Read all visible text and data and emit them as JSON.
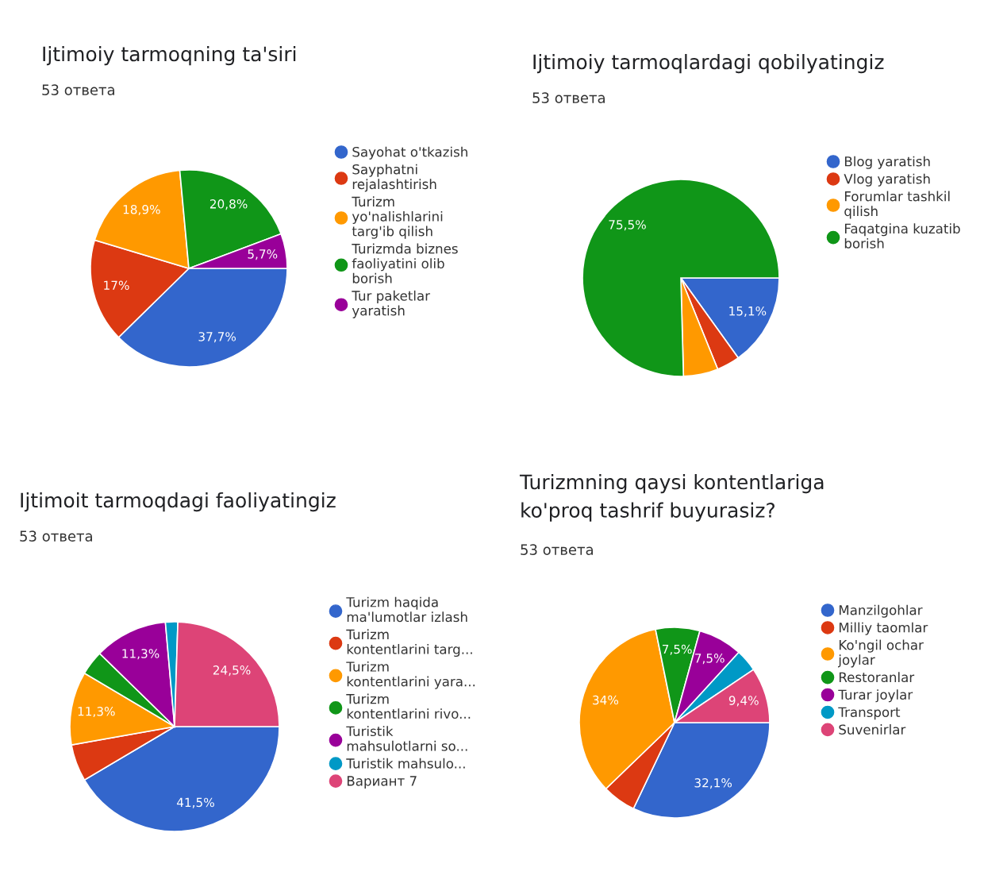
{
  "chart_data": [
    {
      "type": "pie",
      "title": "Ijtimoiy tarmoqning ta'siri",
      "subtitle": "53 ответа",
      "legend": "right",
      "categories": [
        "Sayohat o'tkazish",
        "Sayphatni\nrejalashtirish",
        "Turizm\nyo'nalishlarini\ntarg'ib qilish",
        "Turizmda biznes\nfaoliyatini olib\nborish",
        "Tur paketlar\nyaratish"
      ],
      "values": [
        37.7,
        17,
        18.9,
        20.8,
        5.7
      ],
      "value_labels": [
        "37,7%",
        "17%",
        "18,9%",
        "20,8%",
        "5,7%"
      ],
      "colors": [
        "#3366cc",
        "#dc3912",
        "#ff9900",
        "#109618",
        "#990099"
      ]
    },
    {
      "type": "pie",
      "title": "Ijtimoiy tarmoqlardagi qobilyatingiz",
      "subtitle": "53 ответа",
      "legend": "right",
      "categories": [
        "Blog yaratish",
        "Vlog yaratish",
        "Forumlar tashkil\nqilish",
        "Faqatgina kuzatib\nborish"
      ],
      "values": [
        15.1,
        3.8,
        5.7,
        75.5
      ],
      "value_labels": [
        "15,1%",
        null,
        null,
        "75,5%"
      ],
      "colors": [
        "#3366cc",
        "#dc3912",
        "#ff9900",
        "#109618"
      ]
    },
    {
      "type": "pie",
      "title": "Ijtimoit tarmoqdagi faoliyatingiz",
      "subtitle": "53 ответа",
      "legend": "right",
      "categories": [
        "Turizm haqida\nma'lumotlar izlash",
        "Turizm\nkontentlarini targ...",
        "Turizm\nkontentlarini yara...",
        "Turizm\nkontentlarini rivo...",
        "Turistik\nmahsulotlarni so...",
        "Turistik mahsulo...",
        "Вариант 7"
      ],
      "values": [
        41.5,
        5.7,
        11.3,
        3.8,
        11.3,
        1.9,
        24.5
      ],
      "value_labels": [
        "41,5%",
        null,
        "11,3%",
        null,
        "11,3%",
        null,
        "24,5%"
      ],
      "colors": [
        "#3366cc",
        "#dc3912",
        "#ff9900",
        "#109618",
        "#990099",
        "#0099c6",
        "#dd4477"
      ]
    },
    {
      "type": "pie",
      "title": "Turizmning qaysi kontentlariga\nko'proq tashrif buyurasiz?",
      "subtitle": "53 ответа",
      "legend": "right",
      "categories": [
        "Manzilgohlar",
        "Milliy taomlar",
        "Ko'ngil ochar\njoylar",
        "Restoranlar",
        "Turar joylar",
        "Transport",
        "Suvenirlar"
      ],
      "values": [
        32.1,
        5.7,
        34,
        7.5,
        7.5,
        3.8,
        9.4
      ],
      "value_labels": [
        "32,1%",
        null,
        "34%",
        "7,5%",
        "7,5%",
        null,
        "9,4%"
      ],
      "colors": [
        "#3366cc",
        "#dc3912",
        "#ff9900",
        "#109618",
        "#990099",
        "#0099c6",
        "#dd4477"
      ]
    }
  ]
}
